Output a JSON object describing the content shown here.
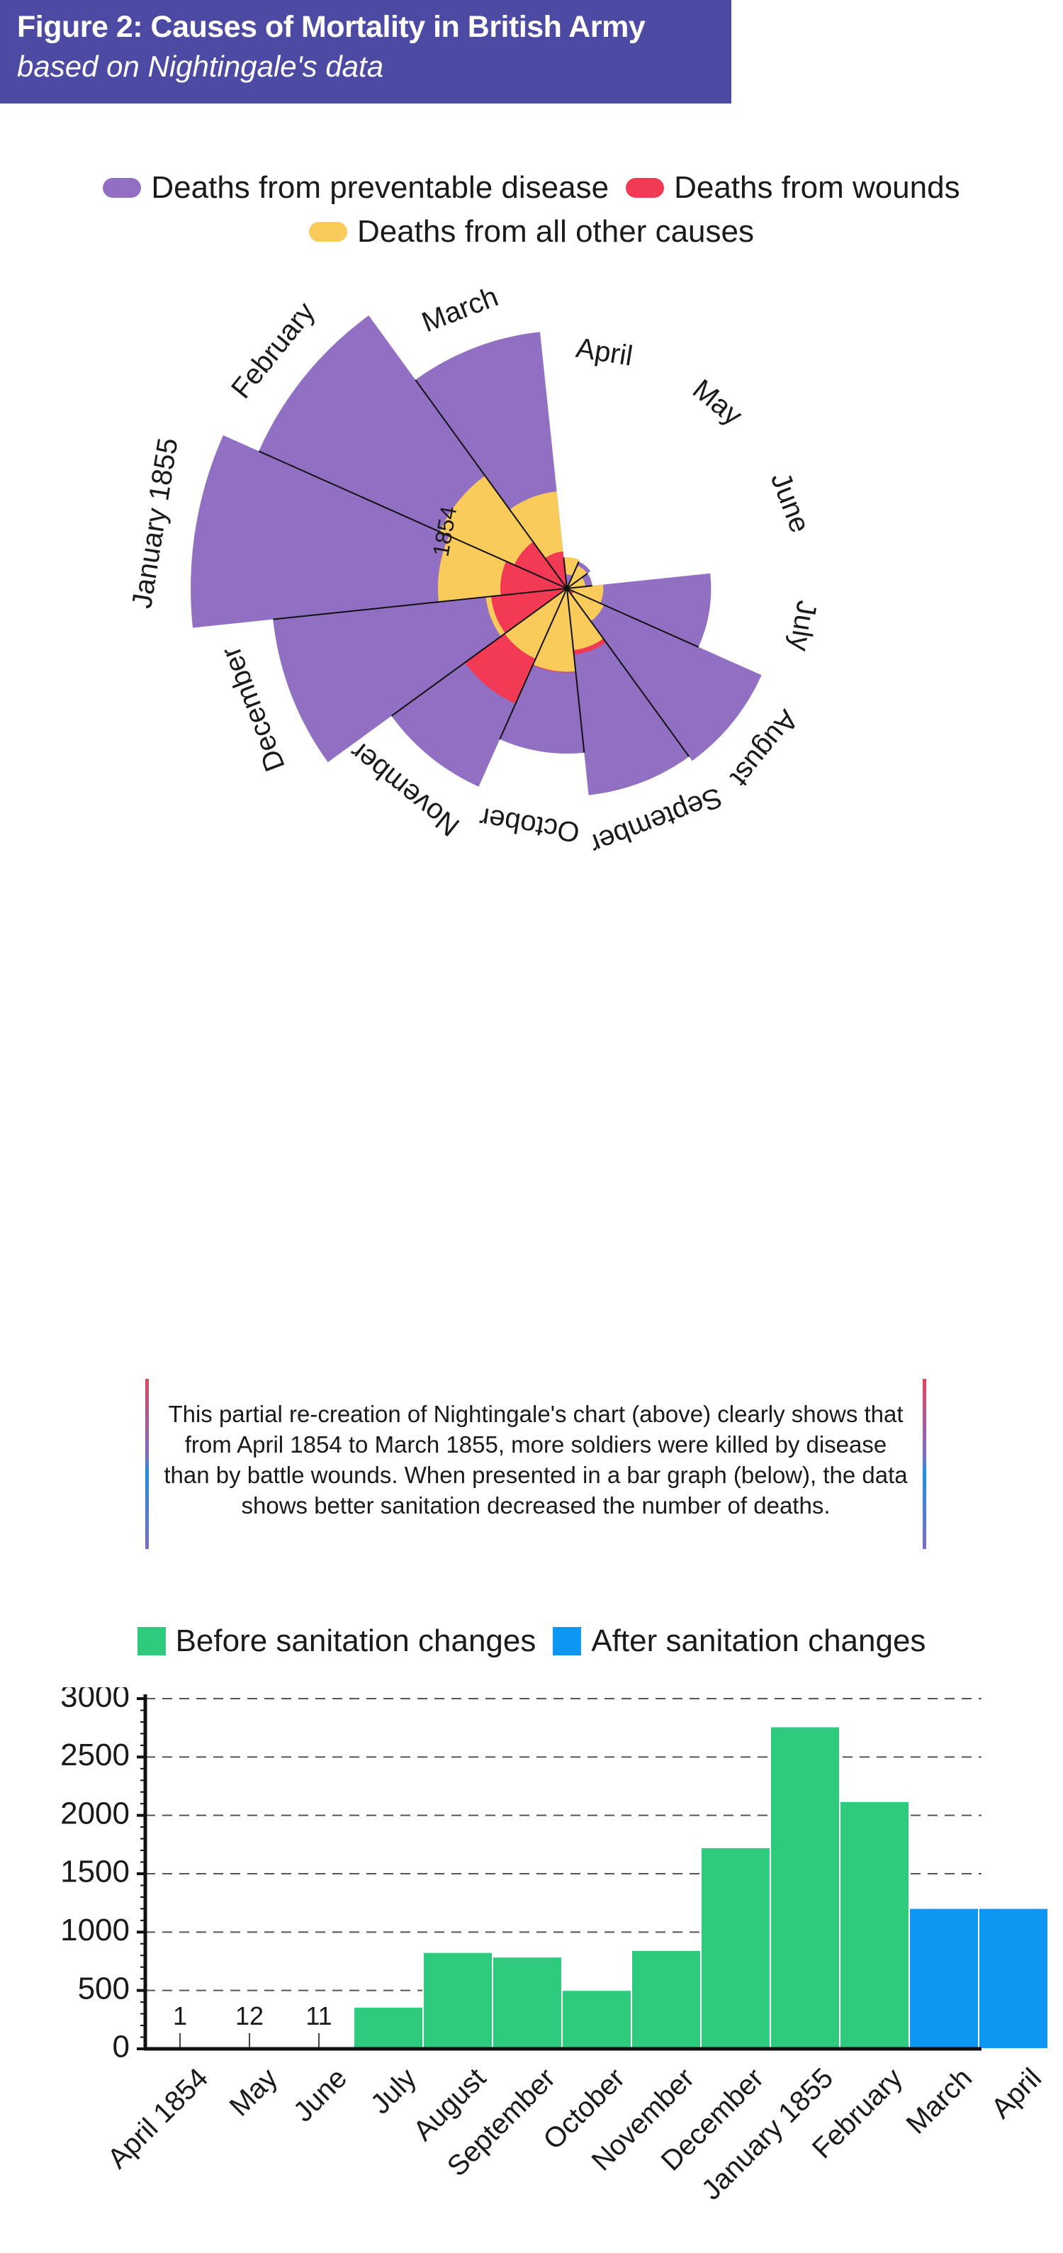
{
  "header": {
    "title": "Figure 2: Causes of Mortality in British Army",
    "subtitle": "based on Nightingale's data"
  },
  "colors": {
    "disease": "#9170c4",
    "wounds": "#f33a55",
    "other": "#f9cb5a",
    "before": "#2ecb7f",
    "after": "#0d96f2",
    "header_bg": "#4d4aa3"
  },
  "chart_data": [
    {
      "type": "polar-area",
      "legend": {
        "disease": "Deaths from preventable disease",
        "wounds": "Deaths from wounds",
        "other": "Deaths from all other causes"
      },
      "year_label": "1854",
      "months": [
        "April",
        "May",
        "June",
        "July",
        "August",
        "September",
        "October",
        "November",
        "December",
        "January 1855",
        "February",
        "March"
      ],
      "series": [
        {
          "name": "Deaths from preventable disease",
          "values": [
            1.4,
            6.2,
            4.7,
            150,
            328,
            312,
            197,
            340,
            631,
            1023,
            822,
            480
          ]
        },
        {
          "name": "Deaths from wounds",
          "values": [
            0,
            0,
            0,
            0,
            0.4,
            32,
            51,
            115,
            42,
            32,
            24,
            10
          ]
        },
        {
          "name": "Deaths from all other causes",
          "values": [
            7,
            4.6,
            2.5,
            9.6,
            11.9,
            27.7,
            50.1,
            42.8,
            48,
            120.2,
            140.1,
            68.6
          ]
        }
      ]
    },
    {
      "type": "bar",
      "legend": {
        "before": "Before sanitation changes",
        "after": "After sanitation changes"
      },
      "categories": [
        "April 1854",
        "May",
        "June",
        "July",
        "August",
        "September",
        "October",
        "November",
        "December",
        "January 1855",
        "February",
        "March",
        "April"
      ],
      "values": [
        1,
        12,
        11,
        359,
        828,
        788,
        503,
        844,
        1725,
        2761,
        2120,
        1205,
        1205
      ],
      "group": [
        "before",
        "before",
        "before",
        "before",
        "before",
        "before",
        "before",
        "before",
        "before",
        "before",
        "before",
        "after",
        "after"
      ],
      "data_labels": [
        "1",
        "12",
        "11",
        "",
        "",
        "",
        "",
        "",
        "",
        "",
        "",
        "",
        ""
      ],
      "yticks": [
        0,
        500,
        1000,
        1500,
        2000,
        2500,
        3000
      ],
      "ylim": [
        0,
        3000
      ],
      "grid": "horizontal-dashed"
    }
  ],
  "note": {
    "text": "This partial re-creation of Nightingale's chart (above) clearly shows that from April 1854 to March 1855, more soldiers were killed by disease than by battle wounds. When presented in a bar graph (below), the data shows better sanitation decreased the number of deaths."
  }
}
